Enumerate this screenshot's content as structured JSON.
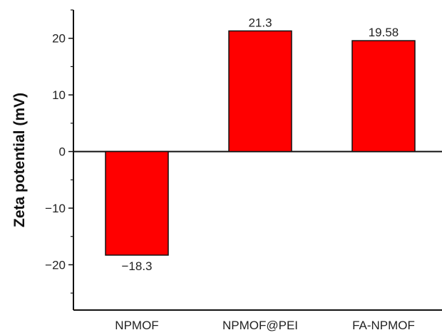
{
  "chart_data": {
    "type": "bar",
    "categories": [
      "NPMOF",
      "NPMOF@PEI",
      "FA-NPMOF"
    ],
    "values": [
      -18.3,
      21.3,
      19.58
    ],
    "data_labels": [
      "−18.3",
      "21.3",
      "19.58"
    ],
    "title": "",
    "xlabel": "",
    "ylabel": "Zeta potential (mV)",
    "ylim": [
      -28,
      25
    ],
    "yticks": [
      -20,
      -10,
      0,
      10,
      20
    ],
    "ytick_labels": [
      "−20",
      "−10",
      "0",
      "10",
      "20"
    ],
    "grid": false,
    "bar_color": "#ff0000",
    "bar_edge_color": "#111111"
  }
}
